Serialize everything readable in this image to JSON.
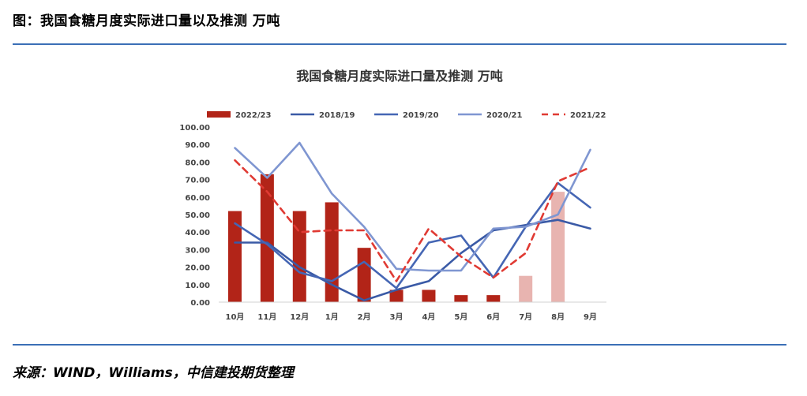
{
  "figure_title": "图：我国食糖月度实际进口量以及推测 万吨",
  "source": "来源：WIND，Williams，中信建投期货整理",
  "chart_data": {
    "type": "bar",
    "title": "我国食糖月度实际进口量及推测 万吨",
    "categories": [
      "10月",
      "11月",
      "12月",
      "1月",
      "2月",
      "3月",
      "4月",
      "5月",
      "6月",
      "7月",
      "8月",
      "9月"
    ],
    "ylim": [
      0,
      100
    ],
    "yticks": [
      "0.00",
      "10.00",
      "20.00",
      "30.00",
      "40.00",
      "50.00",
      "60.00",
      "70.00",
      "80.00",
      "90.00",
      "100.00"
    ],
    "legend_position": "top",
    "grid": false,
    "bars": {
      "name": "2022/23",
      "color": "#b22418",
      "projection_color": "#e8b4b0",
      "values": [
        52,
        73,
        52,
        57,
        31,
        7,
        7,
        4,
        4,
        null,
        null,
        null
      ],
      "projected_values": [
        null,
        null,
        null,
        null,
        null,
        null,
        null,
        null,
        null,
        15,
        63,
        null
      ]
    },
    "series": [
      {
        "name": "2018/19",
        "color": "#3a5aa6",
        "style": "solid",
        "values": [
          34,
          34,
          20,
          10,
          1,
          7,
          12,
          28,
          41,
          44,
          47,
          42
        ]
      },
      {
        "name": "2019/20",
        "color": "#4566b4",
        "style": "solid",
        "values": [
          45,
          33,
          17,
          12,
          23,
          8,
          34,
          38,
          14,
          43,
          68,
          54
        ]
      },
      {
        "name": "2020/21",
        "color": "#7f96d1",
        "style": "solid",
        "values": [
          88,
          71,
          91,
          62,
          43,
          19,
          18,
          18,
          42,
          43,
          50,
          87
        ]
      },
      {
        "name": "2021/22",
        "color": "#e03a33",
        "style": "dashed",
        "values": [
          81,
          63,
          40,
          41,
          41,
          12,
          42,
          26,
          14,
          28,
          69,
          77
        ]
      }
    ]
  }
}
